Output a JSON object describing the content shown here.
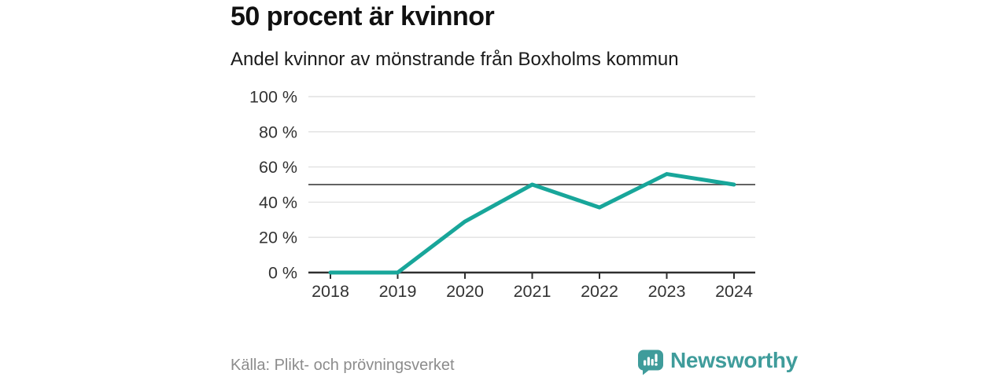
{
  "header": {
    "title": "50 procent är kvinnor",
    "subtitle": "Andel kvinnor av mönstrande från Boxholms kommun"
  },
  "footer": {
    "source": "Källa: Plikt- och prövningsverket",
    "brand": "Newsworthy"
  },
  "icons": {
    "brand": "bar-chart-speech-bubble-icon"
  },
  "colors": {
    "line": "#18a69a",
    "reference_line": "#4d4d4d",
    "grid": "#e1e1e1",
    "axis": "#2f2f2f",
    "tick_text": "#333333",
    "brand_teal": "#3f9c9b"
  },
  "chart_data": {
    "type": "line",
    "title": "50 procent är kvinnor",
    "subtitle": "Andel kvinnor av mönstrande från Boxholms kommun",
    "categories": [
      "2018",
      "2019",
      "2020",
      "2021",
      "2022",
      "2023",
      "2024"
    ],
    "series": [
      {
        "name": "Andel kvinnor av mönstrande",
        "values": [
          0,
          0,
          29,
          50,
          37,
          56,
          50
        ]
      }
    ],
    "y_ticks": [
      {
        "v": 0,
        "label": "0 %"
      },
      {
        "v": 20,
        "label": "20 %"
      },
      {
        "v": 40,
        "label": "40 %"
      },
      {
        "v": 60,
        "label": "60 %"
      },
      {
        "v": 80,
        "label": "80 %"
      },
      {
        "v": 100,
        "label": "100 %"
      }
    ],
    "ylim": [
      0,
      100
    ],
    "reference_line": 50,
    "grid": true,
    "legend": "none"
  }
}
